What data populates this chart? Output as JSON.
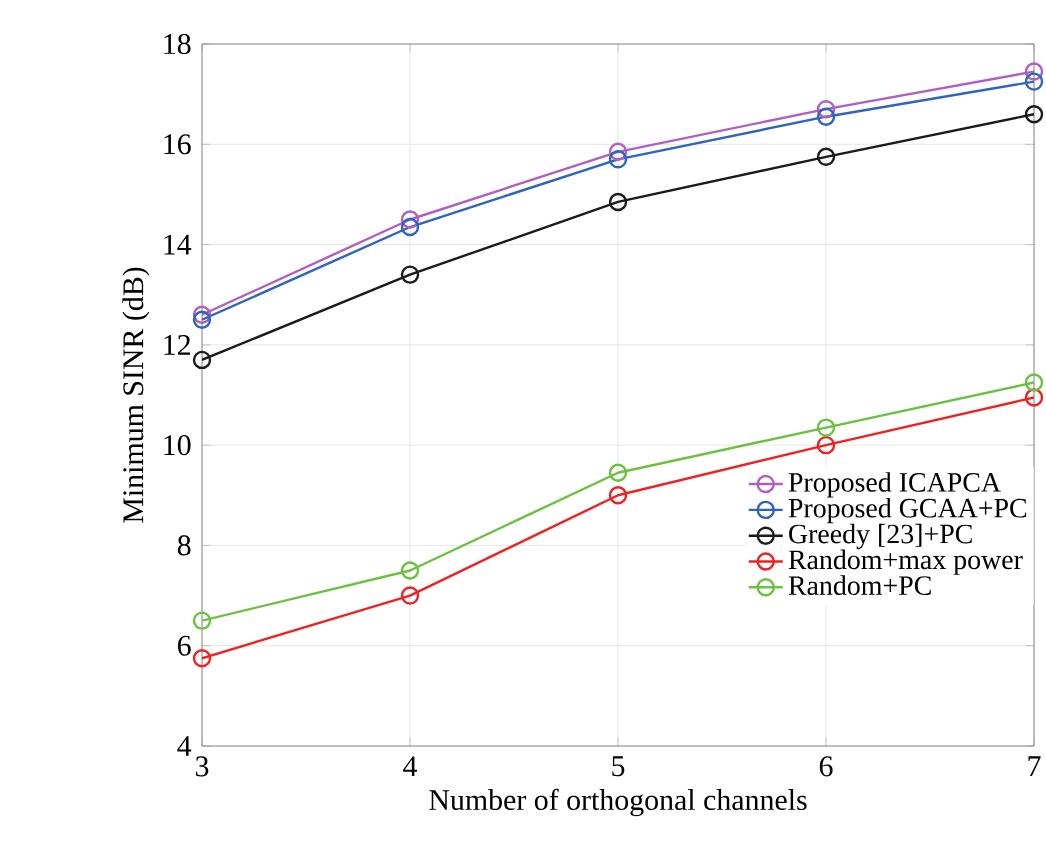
{
  "chart_data": {
    "type": "line",
    "xlabel": "Number of orthogonal channels",
    "ylabel": "Minimum SINR (dB)",
    "x": [
      3,
      4,
      5,
      6,
      7
    ],
    "xlim": [
      3,
      7
    ],
    "xticks": [
      3,
      4,
      5,
      6,
      7
    ],
    "ylim": [
      4,
      18
    ],
    "yticks": [
      4,
      6,
      8,
      10,
      12,
      14,
      16,
      18
    ],
    "grid": true,
    "legend": "bottom right",
    "marker": "circle",
    "line_style": "solid",
    "series": [
      {
        "name": "Proposed ICAPCA",
        "color": "#b05fc0",
        "values": [
          12.6,
          14.5,
          15.85,
          16.7,
          17.45
        ]
      },
      {
        "name": "Proposed GCAA+PC",
        "color": "#2e64c0",
        "values": [
          12.5,
          14.35,
          15.7,
          16.55,
          17.25
        ]
      },
      {
        "name": "Greedy [23]+PC",
        "color": "#1a1a1a",
        "values": [
          11.7,
          13.4,
          14.85,
          15.75,
          16.6
        ]
      },
      {
        "name": "Random+max power",
        "color": "#ee2222",
        "values": [
          5.75,
          7.0,
          9.0,
          10.0,
          10.95
        ]
      },
      {
        "name": "Random+PC",
        "color": "#6cc040",
        "values": [
          6.5,
          7.5,
          9.45,
          10.35,
          11.25
        ]
      }
    ]
  }
}
